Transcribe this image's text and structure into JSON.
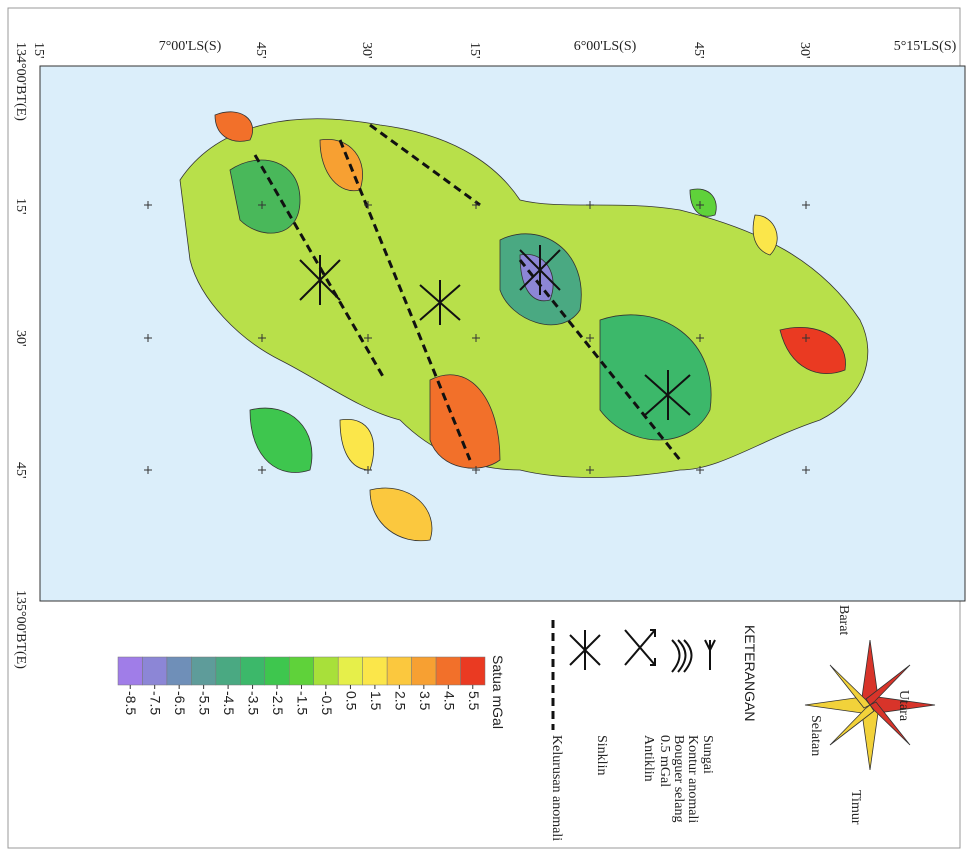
{
  "top_labels": [
    "15'",
    "7°00'LS(S)",
    "45'",
    "30'",
    "15'",
    "6°00'LS(S)",
    "45'",
    "30'",
    "5°15'LS(S)"
  ],
  "left_labels": [
    "134°00'BT(E)",
    "15'",
    "30'",
    "45'",
    "135°00'BT(E)"
  ],
  "legend": {
    "title": "KETERANGAN",
    "items": [
      "Sungai",
      "Kontur anomali",
      "Bouguer selang",
      "0.5 mGal",
      "Antiklin",
      "Sinklin",
      "Kelurusan anomali"
    ]
  },
  "compass": [
    "Barat",
    "Utara",
    "Selatan",
    "Timur"
  ],
  "colorbar": {
    "unit": "Satua mGal",
    "ticks": [
      -8.5,
      -7.5,
      -6.5,
      -5.5,
      -4.5,
      -3.5,
      -2.5,
      -1.5,
      -0.5,
      0.5,
      1.5,
      2.5,
      3.5,
      4.5,
      5.5
    ],
    "colors": [
      "#a07de8",
      "#8c86d6",
      "#6f8fb8",
      "#5e9c9a",
      "#4aa982",
      "#3cb86a",
      "#3ec64e",
      "#5fd23a",
      "#a8e03a",
      "#e6ef4a",
      "#fbe64a",
      "#fbc83e",
      "#f7a032",
      "#f2702a",
      "#ea3a22"
    ]
  }
}
